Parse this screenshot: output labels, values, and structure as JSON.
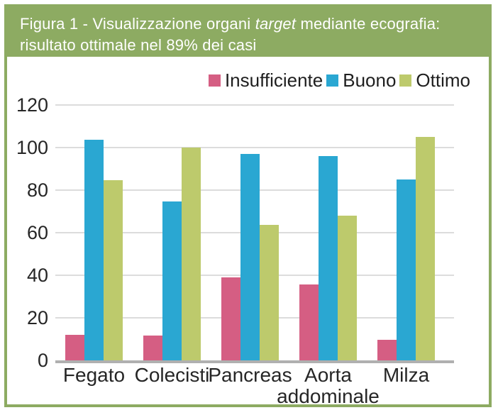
{
  "header": {
    "title_prefix": "Figura 1 - Visualizzazione organi ",
    "title_italic": "target",
    "title_suffix": " mediante ecografia: risultato ottimale nel 89% dei casi"
  },
  "colors": {
    "frame_green": "#8dab62",
    "insufficiente_pink": "#d55e83",
    "buono_blue": "#2aa7d2",
    "ottimo_olive": "#bdca6c",
    "gridline_gray": "#dcdcdc",
    "axis_gray": "#b0b0b0",
    "text_dark": "#262626",
    "title_white": "#ffffff"
  },
  "chart_data": {
    "type": "bar",
    "title": "Figura 1 - Visualizzazione organi target mediante ecografia: risultato ottimale nel 89% dei casi",
    "categories": [
      "Fegato",
      "Colecisti",
      "Pancreas",
      "Aorta addominale",
      "Milza"
    ],
    "series": [
      {
        "name": "Insufficiente",
        "color": "#d55e83",
        "values": [
          12,
          11.5,
          39,
          35.5,
          9.5
        ]
      },
      {
        "name": "Buono",
        "color": "#2aa7d2",
        "values": [
          103.5,
          74.5,
          97,
          96,
          85
        ]
      },
      {
        "name": "Ottimo",
        "color": "#bdca6c",
        "values": [
          84.5,
          100,
          63.5,
          68,
          105
        ]
      }
    ],
    "xlabel": "",
    "ylabel": "",
    "ylim": [
      0,
      120
    ],
    "y_ticks": [
      0,
      20,
      40,
      60,
      80,
      100,
      120
    ],
    "grid": true,
    "legend_position": "top-right"
  }
}
